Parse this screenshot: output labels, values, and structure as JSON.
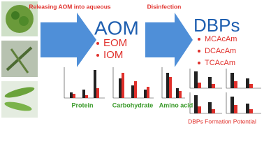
{
  "step1": {
    "label": "Releasing AOM into aqueous"
  },
  "aom": {
    "title": "AOM",
    "items": [
      "EOM",
      "IOM"
    ]
  },
  "step2": {
    "label": "Disinfection"
  },
  "dbps": {
    "title": "DBPs",
    "items": [
      "MCAcAm",
      "DCAcAm",
      "TCAcAm"
    ]
  },
  "panels": [
    "Protein",
    "Carbohydrate",
    "Amino acid"
  ],
  "dbp_panel": {
    "label": "DBPs Formation Potential"
  }
}
